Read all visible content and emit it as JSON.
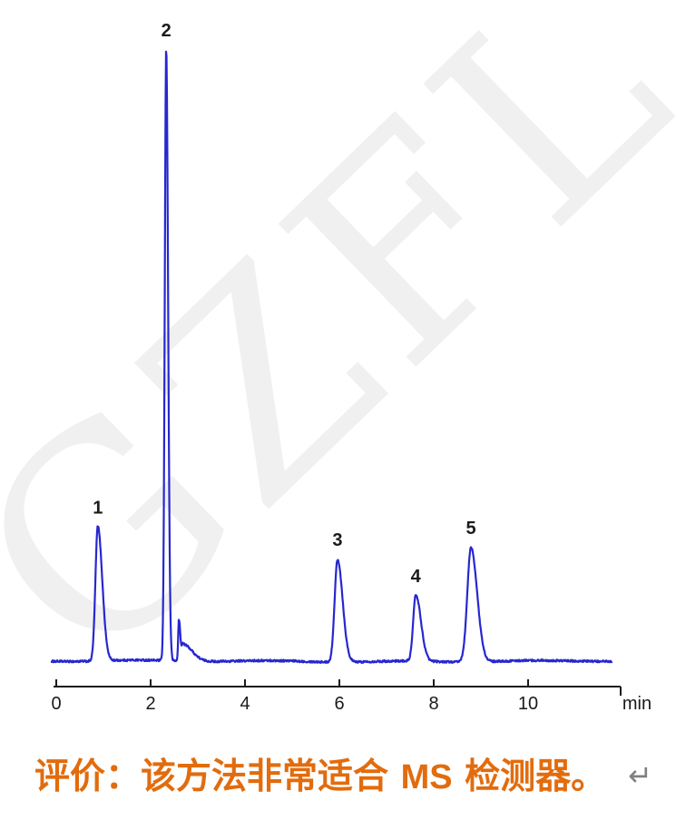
{
  "page": {
    "background": "#ffffff"
  },
  "watermark": {
    "text": "GZFL",
    "color": "#f0f0f0"
  },
  "chart_data": {
    "type": "line",
    "title": "",
    "xlabel": "min",
    "x_ticks": [
      0,
      2,
      4,
      6,
      8,
      10
    ],
    "x_range_min": [
      0,
      11.8
    ],
    "grid": false,
    "legend": "none",
    "trace_color": "#2727cf",
    "axis_color": "#1a1a1a",
    "peaks": [
      {
        "label": "1",
        "rt_min": 0.88,
        "rel_height": 0.22,
        "sigma_l": 0.05,
        "sigma_r": 0.095
      },
      {
        "label": "2",
        "rt_min": 2.33,
        "rel_height": 1.0,
        "sigma_l": 0.03,
        "sigma_r": 0.04
      },
      {
        "label": "3",
        "rt_min": 5.96,
        "rel_height": 0.168,
        "sigma_l": 0.06,
        "sigma_r": 0.11
      },
      {
        "label": "4",
        "rt_min": 7.62,
        "rel_height": 0.108,
        "sigma_l": 0.055,
        "sigma_r": 0.11
      },
      {
        "label": "5",
        "rt_min": 8.79,
        "rel_height": 0.187,
        "sigma_l": 0.078,
        "sigma_r": 0.13
      }
    ],
    "minor_features": [
      {
        "label": "",
        "rt_min": 2.6,
        "rel_height": 0.068,
        "sigma_l": 0.016,
        "sigma_r": 0.03
      },
      {
        "label": "",
        "rt_min": 2.68,
        "rel_height": 0.028,
        "sigma_l": 0.02,
        "sigma_r": 0.2
      }
    ]
  },
  "caption": {
    "prefix": "评价：该方法非常适合 ",
    "highlight": "MS",
    "suffix": " 检测器。",
    "return_mark": "↵",
    "color": "#e26c0d"
  }
}
